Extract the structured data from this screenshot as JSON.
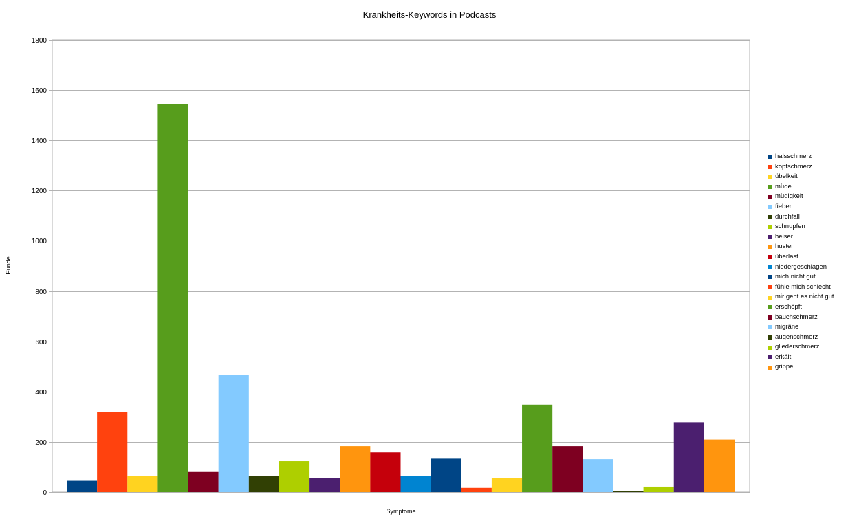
{
  "chart_data": {
    "type": "bar",
    "title": "Krankheits-Keywords in Podcasts",
    "xlabel": "Symptome",
    "ylabel": "Funde",
    "ylim": [
      0,
      1800
    ],
    "yticks": [
      "0",
      "200",
      "400",
      "600",
      "800",
      "1000",
      "1200",
      "1400",
      "1600",
      "1800"
    ],
    "grid": true,
    "legend_position": "right",
    "series": [
      {
        "name": "halsschmerz",
        "value": 45,
        "color": "#004586"
      },
      {
        "name": "kopfschmerz",
        "value": 320,
        "color": "#ff420e"
      },
      {
        "name": "übelkeit",
        "value": 65,
        "color": "#ffd320"
      },
      {
        "name": "müde",
        "value": 1545,
        "color": "#579d1c"
      },
      {
        "name": "müdigkeit",
        "value": 80,
        "color": "#7e0021"
      },
      {
        "name": "fieber",
        "value": 465,
        "color": "#83caff"
      },
      {
        "name": "durchfall",
        "value": 65,
        "color": "#314004"
      },
      {
        "name": "schnupfen",
        "value": 123,
        "color": "#aecf00"
      },
      {
        "name": "heiser",
        "value": 57,
        "color": "#4b1f6f"
      },
      {
        "name": "husten",
        "value": 183,
        "color": "#ff950e"
      },
      {
        "name": "überlast",
        "value": 158,
        "color": "#c5000b"
      },
      {
        "name": "niedergeschlagen",
        "value": 64,
        "color": "#0084d1"
      },
      {
        "name": "mich nicht gut",
        "value": 133,
        "color": "#004586"
      },
      {
        "name": "fühle mich schlecht",
        "value": 17,
        "color": "#ff420e"
      },
      {
        "name": "mir geht es nicht gut",
        "value": 56,
        "color": "#ffd320"
      },
      {
        "name": "erschöpft",
        "value": 348,
        "color": "#579d1c"
      },
      {
        "name": "bauchschmerz",
        "value": 183,
        "color": "#7e0021"
      },
      {
        "name": "migräne",
        "value": 131,
        "color": "#83caff"
      },
      {
        "name": "augenschmerz",
        "value": 3,
        "color": "#314004"
      },
      {
        "name": "gliederschmerz",
        "value": 22,
        "color": "#aecf00"
      },
      {
        "name": "erkält",
        "value": 278,
        "color": "#4b1f6f"
      },
      {
        "name": "grippe",
        "value": 209,
        "color": "#ff950e"
      }
    ]
  }
}
